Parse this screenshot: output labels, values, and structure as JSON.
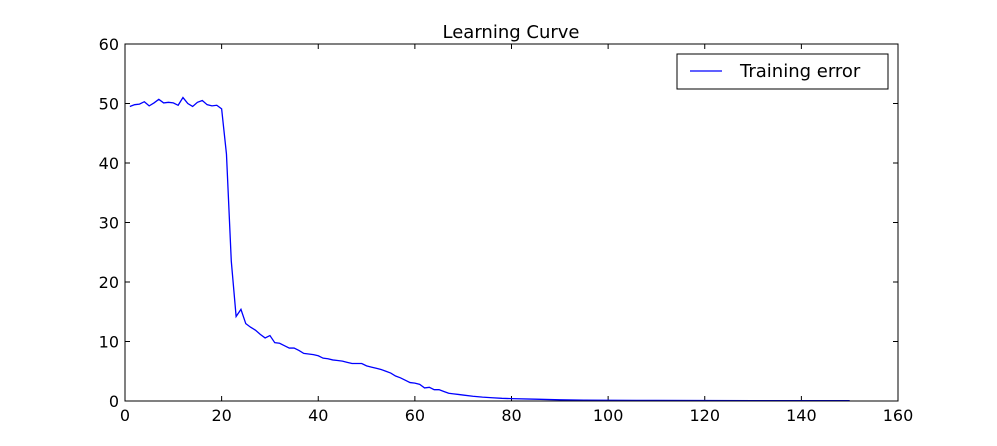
{
  "chart_data": {
    "type": "line",
    "title": "Learning Curve",
    "xlabel": "",
    "ylabel": "",
    "xlim": [
      0,
      160
    ],
    "ylim": [
      0,
      60
    ],
    "x_ticks": [
      0,
      20,
      40,
      60,
      80,
      100,
      120,
      140,
      160
    ],
    "y_ticks": [
      0,
      10,
      20,
      30,
      40,
      50,
      60
    ],
    "grid": false,
    "legend_position": "top-right",
    "series": [
      {
        "name": "Training error",
        "color": "#0000ff",
        "x": [
          1,
          2,
          3,
          4,
          5,
          6,
          7,
          8,
          9,
          10,
          11,
          12,
          13,
          14,
          15,
          16,
          17,
          18,
          19,
          20,
          21,
          22,
          23,
          24,
          25,
          26,
          27,
          28,
          29,
          30,
          31,
          32,
          33,
          34,
          35,
          36,
          37,
          38,
          39,
          40,
          41,
          42,
          43,
          44,
          45,
          46,
          47,
          48,
          49,
          50,
          51,
          52,
          53,
          54,
          55,
          56,
          57,
          58,
          59,
          60,
          61,
          62,
          63,
          64,
          65,
          66,
          67,
          68,
          69,
          70,
          72,
          74,
          76,
          78,
          80,
          85,
          90,
          95,
          100,
          110,
          120,
          130,
          140,
          150
        ],
        "values": [
          49.5,
          49.8,
          49.9,
          50.3,
          49.6,
          50.1,
          50.7,
          50.1,
          50.2,
          50.1,
          49.7,
          51.0,
          50.0,
          49.5,
          50.2,
          50.5,
          49.8,
          49.6,
          49.7,
          49.1,
          41.5,
          23.5,
          14.2,
          15.4,
          13.0,
          12.4,
          11.9,
          11.2,
          10.6,
          11.0,
          9.8,
          9.7,
          9.3,
          8.9,
          8.9,
          8.5,
          8.0,
          7.9,
          7.8,
          7.6,
          7.2,
          7.1,
          6.9,
          6.8,
          6.7,
          6.5,
          6.3,
          6.3,
          6.3,
          5.9,
          5.7,
          5.5,
          5.3,
          5.0,
          4.7,
          4.2,
          3.9,
          3.5,
          3.1,
          3.0,
          2.8,
          2.2,
          2.3,
          1.9,
          1.9,
          1.6,
          1.3,
          1.2,
          1.1,
          1.0,
          0.8,
          0.65,
          0.55,
          0.45,
          0.4,
          0.3,
          0.2,
          0.15,
          0.12,
          0.1,
          0.08,
          0.06,
          0.05,
          0.05
        ]
      }
    ]
  }
}
